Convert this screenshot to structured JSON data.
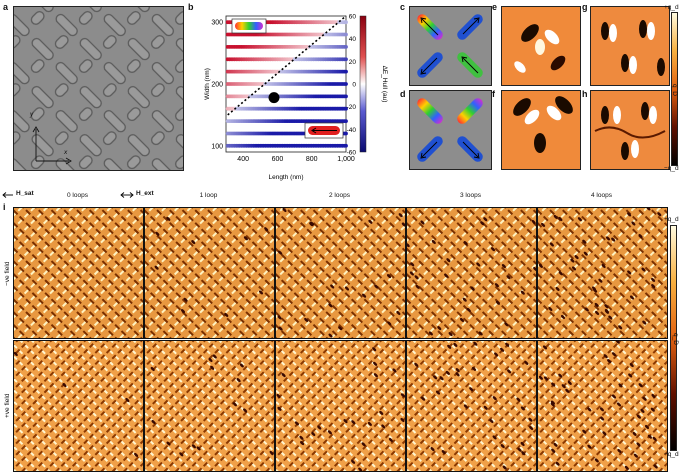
{
  "panel_labels": {
    "a": "a",
    "b": "b",
    "c": "c",
    "d": "d",
    "e": "e",
    "f": "f",
    "g": "g",
    "h": "h",
    "i": "i"
  },
  "panel_a": {
    "axis_y": "y",
    "axis_x": "x"
  },
  "chart_data": {
    "type": "scatter",
    "xlabel": "Length (nm)",
    "ylabel": "Width (nm)",
    "colorbar_label": "ΔE_Hull (au)",
    "x_ticks": [
      400,
      600,
      800,
      "1,000"
    ],
    "y_ticks": [
      100,
      200,
      300
    ],
    "colorbar_ticks": [
      60,
      40,
      20,
      0,
      -20,
      -40,
      -60
    ],
    "xlim": [
      300,
      1000
    ],
    "ylim": [
      90,
      310
    ],
    "clim": [
      -60,
      60
    ],
    "rows_width_nm": [
      100,
      120,
      140,
      160,
      180,
      200,
      220,
      240,
      260,
      280,
      300
    ],
    "boundary_line": {
      "x": [
        310,
        1000
      ],
      "y": [
        150,
        310
      ]
    },
    "marker_point": {
      "x": 580,
      "y": 178
    }
  },
  "colormap": {
    "pos": "#c8102e",
    "mid": "#ffffff",
    "neg": "#1a1aa8",
    "orange": "#f08030"
  },
  "colorbar_right": {
    "top": "+q_d",
    "bottom": "−q_d",
    "label": "q_D"
  },
  "legend_top": {
    "h_sat": "H_sat",
    "h_ext": "H_ext"
  },
  "loops": [
    "0 loops",
    "1 loop",
    "2 loops",
    "3 loops",
    "4 loops"
  ],
  "row_labels": [
    "−ve field",
    "+ve field"
  ],
  "colorbar_i": {
    "top": "+q_d",
    "bottom": "−q_d",
    "label": "q_D"
  }
}
